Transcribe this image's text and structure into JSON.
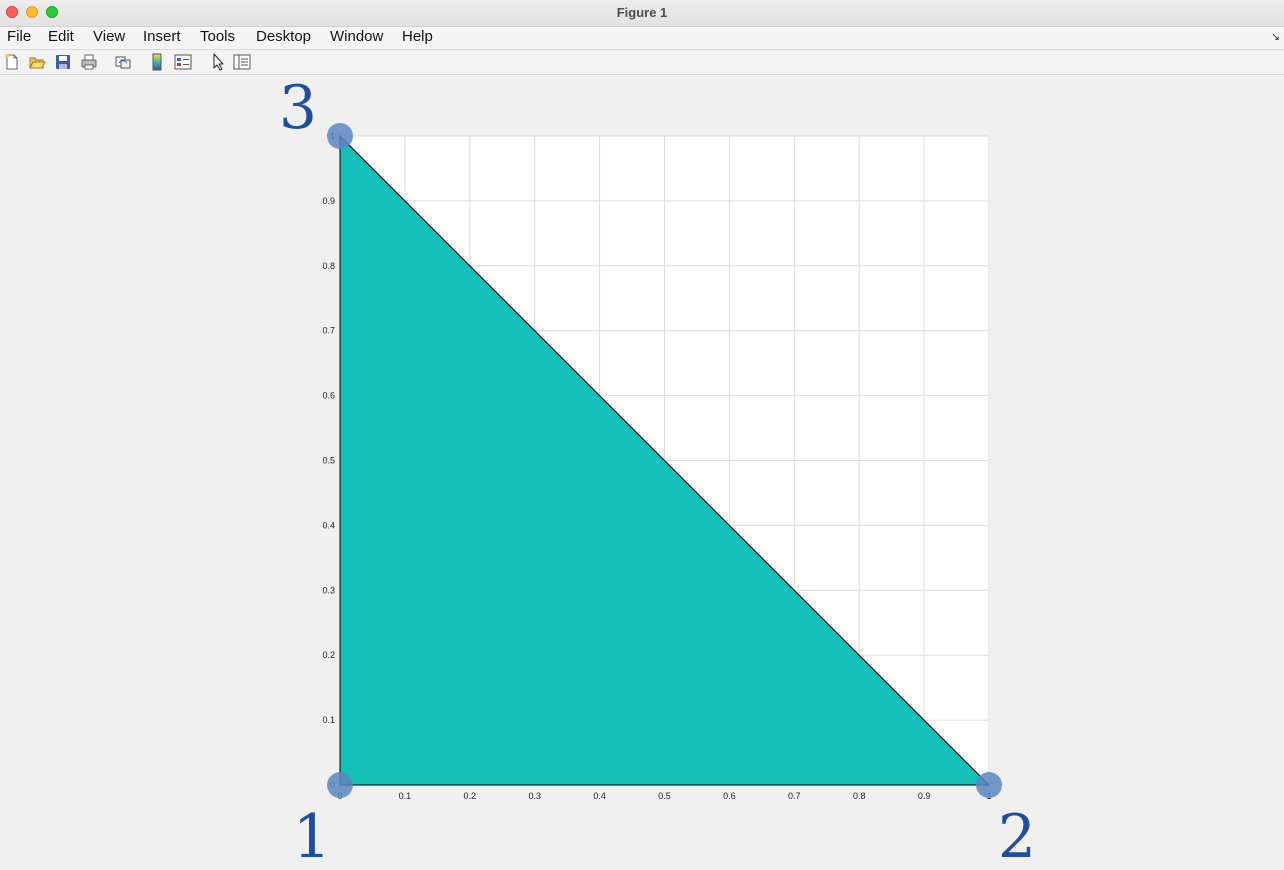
{
  "window": {
    "title": "Figure 1"
  },
  "menu": {
    "items": [
      {
        "key": "file",
        "label": "File"
      },
      {
        "key": "edit",
        "label": "Edit"
      },
      {
        "key": "view",
        "label": "View"
      },
      {
        "key": "insert",
        "label": "Insert"
      },
      {
        "key": "tools",
        "label": "Tools"
      },
      {
        "key": "desktop",
        "label": "Desktop"
      },
      {
        "key": "window",
        "label": "Window"
      },
      {
        "key": "help",
        "label": "Help"
      }
    ]
  },
  "toolbar": {
    "icons": [
      "new-figure-icon",
      "open-file-icon",
      "save-icon",
      "print-icon",
      "link-plot-icon",
      "colorbar-icon",
      "legend-icon",
      "edit-plot-icon",
      "property-inspector-icon"
    ]
  },
  "colors": {
    "fill": "#14bfb8",
    "vertex_marker": "#5b86c0",
    "vertex_label": "#1f4e9c",
    "grid": "#dcdcdc"
  },
  "chart_data": {
    "type": "area",
    "xlim": [
      0,
      1
    ],
    "ylim": [
      0,
      1
    ],
    "xticks": [
      "0",
      "0.1",
      "0.2",
      "0.3",
      "0.4",
      "0.5",
      "0.6",
      "0.7",
      "0.8",
      "0.9",
      "1"
    ],
    "yticks": [
      "0",
      "0.1",
      "0.2",
      "0.3",
      "0.4",
      "0.5",
      "0.6",
      "0.7",
      "0.8",
      "0.9",
      "1"
    ],
    "grid": true,
    "polygon": [
      [
        0,
        0
      ],
      [
        1,
        0
      ],
      [
        0,
        1
      ]
    ],
    "vertices": [
      {
        "label": "1",
        "x": 0,
        "y": 0
      },
      {
        "label": "2",
        "x": 1,
        "y": 0
      },
      {
        "label": "3",
        "x": 0,
        "y": 1
      }
    ]
  }
}
